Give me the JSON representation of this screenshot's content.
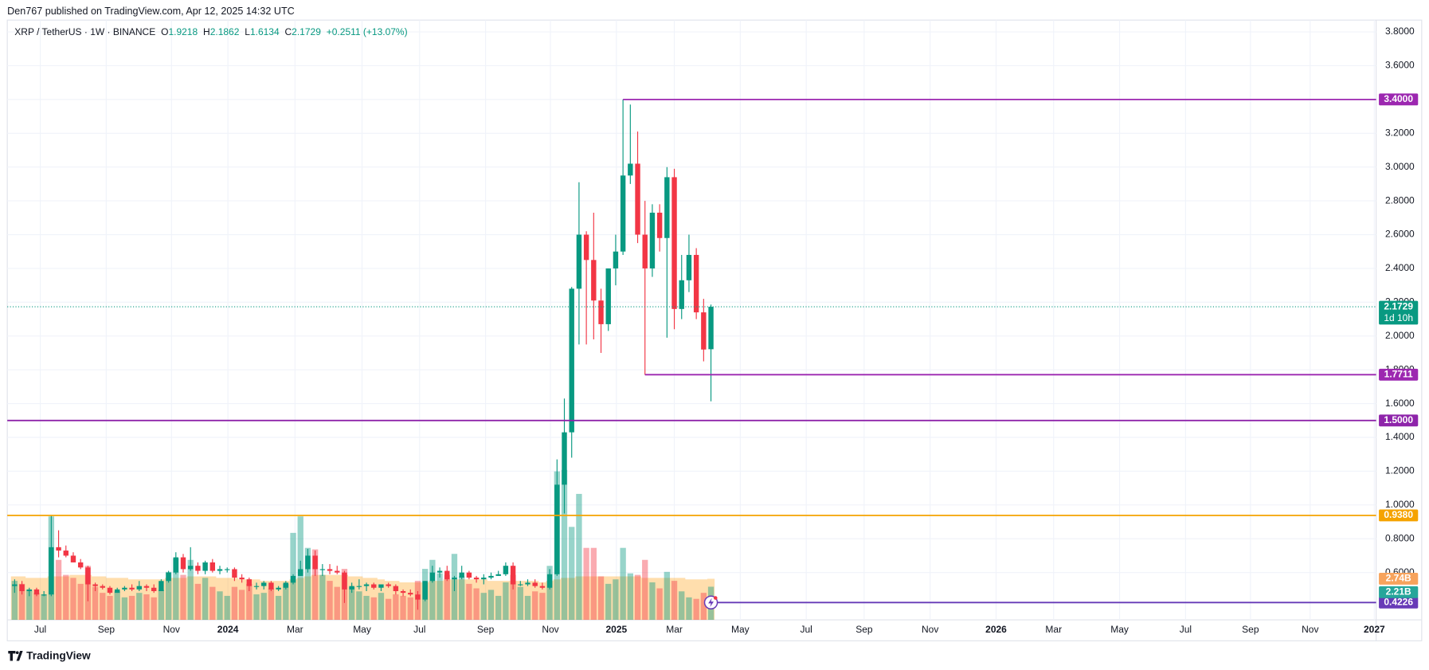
{
  "header": {
    "publisher": "Den767 published on TradingView.com, Apr 12, 2025 14:32 UTC"
  },
  "chart_data": {
    "type": "candlestick",
    "title": "XRP / TetherUS · 1W · BINANCE",
    "legend_labels": {
      "open": "O",
      "high": "H",
      "low": "L",
      "close": "C"
    },
    "change": "+0.2511 (+13.07%)",
    "up_color": "#089981",
    "down_color": "#f23645",
    "open": [
      0.52,
      0.53,
      0.49,
      0.5,
      0.47,
      0.47,
      0.75,
      0.73,
      0.7,
      0.66,
      0.63,
      0.53,
      0.52,
      0.51,
      0.48,
      0.5,
      0.51,
      0.5,
      0.52,
      0.51,
      0.49,
      0.55,
      0.6,
      0.69,
      0.62,
      0.64,
      0.61,
      0.66,
      0.61,
      0.62,
      0.62,
      0.57,
      0.56,
      0.52,
      0.52,
      0.54,
      0.5,
      0.51,
      0.54,
      0.58,
      0.62,
      0.7,
      0.62,
      0.62,
      0.61,
      0.6,
      0.5,
      0.52,
      0.52,
      0.53,
      0.51,
      0.53,
      0.52,
      0.49,
      0.48,
      0.47,
      0.44,
      0.55,
      0.6,
      0.61,
      0.56,
      0.57,
      0.6,
      0.57,
      0.56,
      0.57,
      0.58,
      0.59,
      0.64,
      0.53,
      0.53,
      0.54,
      0.52,
      0.51,
      0.59,
      1.12,
      1.43,
      2.28,
      2.6,
      2.45,
      2.21,
      2.07,
      2.4,
      2.5,
      2.95,
      3.02,
      2.6,
      2.4,
      2.73,
      2.58,
      2.94,
      2.16,
      2.33,
      2.48,
      2.14,
      1.9218
    ],
    "high": [
      0.56,
      0.55,
      0.51,
      0.51,
      0.49,
      0.94,
      0.85,
      0.76,
      0.72,
      0.68,
      0.64,
      0.54,
      0.53,
      0.52,
      0.51,
      0.52,
      0.53,
      0.55,
      0.53,
      0.53,
      0.56,
      0.61,
      0.72,
      0.71,
      0.75,
      0.66,
      0.67,
      0.68,
      0.64,
      0.63,
      0.63,
      0.59,
      0.57,
      0.54,
      0.55,
      0.55,
      0.52,
      0.55,
      0.59,
      0.67,
      0.74,
      0.73,
      0.65,
      0.65,
      0.64,
      0.61,
      0.54,
      0.56,
      0.54,
      0.54,
      0.53,
      0.54,
      0.53,
      0.5,
      0.5,
      0.49,
      0.55,
      0.64,
      0.63,
      0.64,
      0.58,
      0.64,
      0.61,
      0.58,
      0.59,
      0.6,
      0.61,
      0.66,
      0.66,
      0.55,
      0.56,
      0.56,
      0.54,
      0.62,
      1.27,
      1.63,
      2.29,
      2.91,
      2.62,
      2.73,
      2.28,
      2.4,
      2.6,
      3.4,
      3.37,
      3.21,
      2.8,
      2.78,
      2.78,
      3.0,
      2.99,
      2.48,
      2.6,
      2.52,
      2.22,
      2.1862
    ],
    "low": [
      0.48,
      0.47,
      0.46,
      0.46,
      0.46,
      0.46,
      0.69,
      0.69,
      0.66,
      0.62,
      0.43,
      0.49,
      0.5,
      0.47,
      0.48,
      0.49,
      0.49,
      0.49,
      0.49,
      0.48,
      0.49,
      0.54,
      0.59,
      0.6,
      0.61,
      0.59,
      0.59,
      0.6,
      0.59,
      0.6,
      0.55,
      0.54,
      0.49,
      0.5,
      0.5,
      0.49,
      0.49,
      0.5,
      0.53,
      0.58,
      0.6,
      0.58,
      0.58,
      0.59,
      0.59,
      0.42,
      0.48,
      0.5,
      0.49,
      0.5,
      0.49,
      0.51,
      0.47,
      0.46,
      0.46,
      0.38,
      0.43,
      0.54,
      0.57,
      0.55,
      0.49,
      0.56,
      0.56,
      0.54,
      0.53,
      0.56,
      0.58,
      0.58,
      0.5,
      0.52,
      0.52,
      0.51,
      0.5,
      0.5,
      0.58,
      0.95,
      1.28,
      1.95,
      1.95,
      1.98,
      1.9,
      2.03,
      2.3,
      2.48,
      2.9,
      2.55,
      1.77,
      2.35,
      2.5,
      1.99,
      2.04,
      2.1,
      2.26,
      2.1,
      1.85,
      1.6134
    ],
    "close": [
      0.53,
      0.49,
      0.5,
      0.47,
      0.47,
      0.75,
      0.73,
      0.7,
      0.66,
      0.63,
      0.53,
      0.52,
      0.51,
      0.48,
      0.5,
      0.51,
      0.5,
      0.52,
      0.51,
      0.49,
      0.55,
      0.6,
      0.69,
      0.62,
      0.64,
      0.61,
      0.66,
      0.61,
      0.62,
      0.62,
      0.57,
      0.56,
      0.52,
      0.52,
      0.54,
      0.5,
      0.51,
      0.54,
      0.58,
      0.62,
      0.7,
      0.62,
      0.62,
      0.61,
      0.6,
      0.5,
      0.52,
      0.52,
      0.53,
      0.51,
      0.53,
      0.52,
      0.49,
      0.48,
      0.47,
      0.44,
      0.55,
      0.6,
      0.61,
      0.56,
      0.57,
      0.6,
      0.57,
      0.56,
      0.57,
      0.58,
      0.59,
      0.64,
      0.53,
      0.53,
      0.54,
      0.52,
      0.51,
      0.59,
      1.12,
      1.43,
      2.28,
      2.6,
      2.45,
      2.21,
      2.07,
      2.4,
      2.5,
      2.95,
      3.02,
      2.6,
      2.4,
      2.73,
      2.58,
      2.94,
      2.16,
      2.33,
      2.48,
      2.14,
      1.92,
      2.1729
    ],
    "volume": {
      "values": [
        2.6,
        2.4,
        2.0,
        1.8,
        1.7,
        6.9,
        4.0,
        3.0,
        2.8,
        2.4,
        3.6,
        2.2,
        1.8,
        1.6,
        1.9,
        1.5,
        1.6,
        1.8,
        1.7,
        1.5,
        2.0,
        3.2,
        4.1,
        3.0,
        4.0,
        2.4,
        2.8,
        2.2,
        1.9,
        1.6,
        2.2,
        2.0,
        2.4,
        1.7,
        1.8,
        2.1,
        1.6,
        2.4,
        5.8,
        6.9,
        4.8,
        4.7,
        3.0,
        2.6,
        2.2,
        3.4,
        2.2,
        1.9,
        1.6,
        1.5,
        1.8,
        1.4,
        1.7,
        1.6,
        1.5,
        2.6,
        3.4,
        4.0,
        3.1,
        3.0,
        4.4,
        2.9,
        2.4,
        2.1,
        1.8,
        2.0,
        1.6,
        2.5,
        3.0,
        2.2,
        1.6,
        1.9,
        1.8,
        3.6,
        9.9,
        10.0,
        6.2,
        8.4,
        4.8,
        4.8,
        2.9,
        2.4,
        2.7,
        4.8,
        3.1,
        3.0,
        4.0,
        2.5,
        2.1,
        3.2,
        2.6,
        1.9,
        1.5,
        1.4,
        1.8,
        2.21
      ],
      "ma": [
        2.9,
        2.9,
        2.8,
        2.8,
        2.8,
        2.9,
        2.9,
        2.9,
        3.0,
        3.0,
        3.0,
        2.9,
        2.9,
        2.8,
        2.8,
        2.8,
        2.7,
        2.7,
        2.7,
        2.7,
        2.7,
        2.8,
        2.8,
        2.8,
        2.9,
        2.9,
        2.9,
        2.9,
        2.8,
        2.8,
        2.8,
        2.7,
        2.7,
        2.7,
        2.6,
        2.6,
        2.6,
        2.6,
        2.7,
        2.8,
        2.9,
        3.0,
        3.0,
        3.0,
        3.0,
        3.0,
        2.9,
        2.9,
        2.8,
        2.8,
        2.7,
        2.6,
        2.6,
        2.5,
        2.5,
        2.5,
        2.5,
        2.6,
        2.6,
        2.7,
        2.7,
        2.7,
        2.7,
        2.7,
        2.7,
        2.6,
        2.6,
        2.6,
        2.6,
        2.6,
        2.6,
        2.6,
        2.5,
        2.6,
        2.7,
        2.8,
        2.8,
        2.9,
        2.9,
        2.9,
        2.9,
        2.9,
        2.9,
        2.9,
        2.9,
        2.9,
        2.8,
        2.8,
        2.8,
        2.8,
        2.8,
        2.8,
        2.7,
        2.7,
        2.7,
        2.74
      ],
      "up_color": "rgba(8,153,129,0.42)",
      "down_color": "rgba(242,54,69,0.42)",
      "ma_color": "rgba(255,152,0,0.32)",
      "ylim": [
        0,
        40
      ],
      "ma_label": {
        "value": 2.74,
        "label": "2.74B",
        "color": "#f7a35c"
      },
      "last_label": {
        "value": 2.21,
        "label": "2.21B",
        "color": "#26a69a"
      }
    },
    "xlim": [
      -1,
      185.75
    ],
    "xticks": [
      {
        "value": 3.5,
        "label": "Jul"
      },
      {
        "value": 12.5,
        "label": "Sep"
      },
      {
        "value": 21.4,
        "label": "Nov"
      },
      {
        "value": 29.1,
        "label": "2024"
      },
      {
        "value": 38.25,
        "label": "Mar"
      },
      {
        "value": 47.4,
        "label": "May"
      },
      {
        "value": 55.25,
        "label": "Jul"
      },
      {
        "value": 64.25,
        "label": "Sep"
      },
      {
        "value": 73.1,
        "label": "Nov"
      },
      {
        "value": 82.1,
        "label": "2025"
      },
      {
        "value": 90,
        "label": "Mar"
      },
      {
        "value": 99,
        "label": "May"
      },
      {
        "value": 108,
        "label": "Jul"
      },
      {
        "value": 115.9,
        "label": "Sep"
      },
      {
        "value": 124.9,
        "label": "Nov"
      },
      {
        "value": 133.9,
        "label": "2026"
      },
      {
        "value": 141.75,
        "label": "Mar"
      },
      {
        "value": 150.75,
        "label": "May"
      },
      {
        "value": 159.75,
        "label": "Jul"
      },
      {
        "value": 168.6,
        "label": "Sep"
      },
      {
        "value": 176.75,
        "label": "Nov"
      },
      {
        "value": 185.5,
        "label": "2027"
      }
    ],
    "ylim": [
      0.32,
      3.87
    ],
    "yticks": [
      {
        "value": 0.6,
        "label": "0.6000"
      },
      {
        "value": 0.8,
        "label": "0.8000"
      },
      {
        "value": 1,
        "label": "1.0000"
      },
      {
        "value": 1.2,
        "label": "1.2000"
      },
      {
        "value": 1.4,
        "label": "1.4000"
      },
      {
        "value": 1.6,
        "label": "1.6000"
      },
      {
        "value": 1.8,
        "label": "1.8000"
      },
      {
        "value": 2,
        "label": "2.0000"
      },
      {
        "value": 2.2,
        "label": "2.2000"
      },
      {
        "value": 2.4,
        "label": "2.4000"
      },
      {
        "value": 2.6,
        "label": "2.6000"
      },
      {
        "value": 2.8,
        "label": "2.8000"
      },
      {
        "value": 3,
        "label": "3.0000"
      },
      {
        "value": 3.2,
        "label": "3.2000"
      },
      {
        "value": 3.4,
        "label": "3.4000"
      },
      {
        "value": 3.6,
        "label": "3.6000"
      },
      {
        "value": 3.8,
        "label": "3.8000"
      }
    ],
    "grid": true,
    "levels": [
      {
        "value": 3.4,
        "label": "3.4000",
        "color": "#9c27b0",
        "from": 83
      },
      {
        "value": 1.7711,
        "label": "1.7711",
        "color": "#9c27b0",
        "from": 86
      },
      {
        "value": 1.5,
        "label": "1.5000",
        "color": "#8e24aa"
      },
      {
        "value": 0.938,
        "label": "0.9380",
        "color": "#f5a300"
      },
      {
        "value": 0.4226,
        "label": "0.4226",
        "color": "#673ab7",
        "from": 95
      }
    ],
    "last_price": {
      "value": 2.1729,
      "label": "2.1729",
      "countdown": "1d 10h",
      "color": "#089981"
    }
  },
  "footer": {
    "brand": "TradingView"
  }
}
